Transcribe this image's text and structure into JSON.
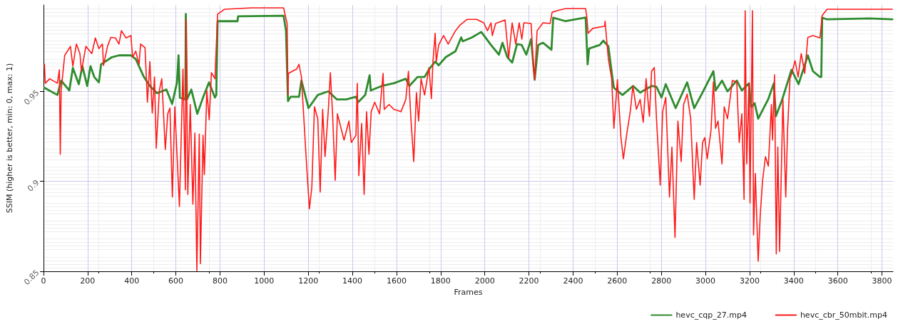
{
  "chart_data": {
    "type": "line",
    "xlabel": "Frames",
    "ylabel": "SSIM (higher is better, min: 0, max: 1)",
    "xlim": [
      0,
      3850
    ],
    "xticks": [
      0,
      200,
      400,
      600,
      800,
      1000,
      1200,
      1400,
      1600,
      1800,
      2000,
      2200,
      2400,
      2600,
      2800,
      3000,
      3200,
      3400,
      3600,
      3800
    ],
    "ylim": [
      0.85,
      0.998
    ],
    "yticks": [
      0.85,
      0.9,
      0.95
    ],
    "grid": true,
    "legend": "bottom right",
    "marker": "none",
    "line_style": "solid",
    "series": [
      {
        "name": "hevc_cqp_27.mp4",
        "color": "#2e8b2e",
        "x": [
          4,
          63,
          80,
          117,
          133,
          160,
          176,
          198,
          213,
          230,
          251,
          261,
          310,
          342,
          396,
          418,
          455,
          482,
          514,
          557,
          583,
          605,
          612,
          618,
          643,
          645,
          650,
          670,
          697,
          723,
          750,
          777,
          783,
          789,
          879,
          882,
          1088,
          1099,
          1108,
          1120,
          1158,
          1169,
          1201,
          1243,
          1291,
          1330,
          1372,
          1416,
          1426,
          1458,
          1478,
          1483,
          1533,
          1588,
          1642,
          1658,
          1695,
          1727,
          1749,
          1775,
          1791,
          1823,
          1867,
          1893,
          1900,
          1942,
          1984,
          2028,
          2064,
          2080,
          2102,
          2124,
          2146,
          2167,
          2188,
          2210,
          2226,
          2242,
          2264,
          2302,
          2310,
          2366,
          2457,
          2466,
          2473,
          2521,
          2537,
          2560,
          2579,
          2585,
          2624,
          2672,
          2704,
          2756,
          2778,
          2801,
          2820,
          2865,
          2917,
          2949,
          2981,
          3036,
          3046,
          3075,
          3100,
          3142,
          3165,
          3197,
          3207,
          3223,
          3239,
          3284,
          3310,
          3319,
          3348,
          3390,
          3422,
          3464,
          3487,
          3519,
          3525,
          3529,
          3551,
          3744,
          3847
        ],
        "values": [
          0.952,
          0.948,
          0.956,
          0.9505,
          0.963,
          0.954,
          0.964,
          0.953,
          0.964,
          0.958,
          0.955,
          0.965,
          0.969,
          0.97,
          0.97,
          0.968,
          0.958,
          0.953,
          0.949,
          0.951,
          0.943,
          0.955,
          0.97,
          0.9465,
          0.9455,
          0.993,
          0.9455,
          0.951,
          0.9375,
          0.9466,
          0.955,
          0.9466,
          0.948,
          0.989,
          0.989,
          0.9917,
          0.992,
          0.9837,
          0.9446,
          0.947,
          0.947,
          0.956,
          0.9407,
          0.948,
          0.95,
          0.9455,
          0.9455,
          0.947,
          0.944,
          0.948,
          0.959,
          0.9505,
          0.953,
          0.9545,
          0.957,
          0.953,
          0.958,
          0.958,
          0.9625,
          0.9665,
          0.9645,
          0.969,
          0.9723,
          0.98,
          0.9778,
          0.98,
          0.983,
          0.9758,
          0.9704,
          0.977,
          0.969,
          0.966,
          0.9763,
          0.9758,
          0.9704,
          0.979,
          0.9565,
          0.9758,
          0.977,
          0.9731,
          0.9909,
          0.989,
          0.991,
          0.965,
          0.9738,
          0.9758,
          0.9782,
          0.975,
          0.957,
          0.952,
          0.948,
          0.953,
          0.9493,
          0.953,
          0.9525,
          0.9466,
          0.954,
          0.9407,
          0.955,
          0.9407,
          0.948,
          0.9612,
          0.9505,
          0.956,
          0.95,
          0.956,
          0.9505,
          0.9545,
          0.9414,
          0.9434,
          0.9348,
          0.9455,
          0.9545,
          0.9362,
          0.9455,
          0.962,
          0.954,
          0.97,
          0.9612,
          0.958,
          0.958,
          0.991,
          0.99,
          0.9905,
          0.99
        ]
      },
      {
        "name": "hevc_cbr_50mbit.mp4",
        "color": "#ff1a1a",
        "x": [
          4,
          8,
          28,
          63,
          72,
          76,
          80,
          96,
          122,
          133,
          149,
          165,
          172,
          192,
          219,
          235,
          251,
          267,
          272,
          290,
          305,
          326,
          342,
          353,
          374,
          396,
          404,
          418,
          433,
          440,
          460,
          466,
          471,
          482,
          493,
          503,
          511,
          525,
          536,
          552,
          563,
          573,
          584,
          595,
          616,
          632,
          643,
          646,
          654,
          665,
          677,
          686,
          695,
          706,
          711,
          723,
          729,
          740,
          751,
          761,
          777,
          789,
          820,
          943,
          1088,
          1104,
          1108,
          1110,
          1147,
          1158,
          1169,
          1180,
          1190,
          1205,
          1216,
          1228,
          1243,
          1254,
          1265,
          1276,
          1291,
          1300,
          1310,
          1322,
          1332,
          1362,
          1384,
          1395,
          1416,
          1422,
          1429,
          1442,
          1453,
          1464,
          1475,
          1485,
          1501,
          1523,
          1539,
          1544,
          1566,
          1588,
          1620,
          1642,
          1654,
          1665,
          1678,
          1690,
          1700,
          1711,
          1727,
          1747,
          1758,
          1765,
          1775,
          1780,
          1791,
          1813,
          1834,
          1867,
          1888,
          1920,
          1963,
          1995,
          2012,
          2028,
          2034,
          2049,
          2092,
          2108,
          2124,
          2140,
          2156,
          2168,
          2177,
          2210,
          2220,
          2226,
          2237,
          2264,
          2296,
          2305,
          2328,
          2366,
          2457,
          2462,
          2468,
          2489,
          2543,
          2545,
          2560,
          2575,
          2585,
          2601,
          2617,
          2628,
          2644,
          2660,
          2671,
          2687,
          2704,
          2718,
          2731,
          2746,
          2756,
          2768,
          2778,
          2795,
          2806,
          2820,
          2837,
          2848,
          2862,
          2875,
          2890,
          2901,
          2917,
          2933,
          2949,
          2960,
          2976,
          2987,
          2997,
          3008,
          3025,
          3036,
          3046,
          3057,
          3075,
          3085,
          3100,
          3122,
          3142,
          3153,
          3165,
          3175,
          3180,
          3187,
          3197,
          3202,
          3213,
          3218,
          3226,
          3239,
          3248,
          3259,
          3272,
          3285,
          3299,
          3304,
          3313,
          3321,
          3328,
          3336,
          3351,
          3364,
          3372,
          3383,
          3392,
          3406,
          3420,
          3434,
          3450,
          3464,
          3487,
          3519,
          3529,
          3551,
          3847
        ],
        "values": [
          0.965,
          0.9545,
          0.957,
          0.9545,
          0.962,
          0.915,
          0.9505,
          0.97,
          0.975,
          0.964,
          0.9763,
          0.971,
          0.9612,
          0.975,
          0.971,
          0.9797,
          0.9738,
          0.9763,
          0.9644,
          0.975,
          0.98,
          0.9797,
          0.9763,
          0.9837,
          0.9797,
          0.981,
          0.969,
          0.9723,
          0.965,
          0.9763,
          0.9743,
          0.958,
          0.944,
          0.9665,
          0.938,
          0.958,
          0.9184,
          0.9505,
          0.957,
          0.9177,
          0.9375,
          0.9407,
          0.8913,
          0.9414,
          0.886,
          0.9624,
          0.8953,
          0.99,
          0.8927,
          0.9427,
          0.8873,
          0.9268,
          0.8503,
          0.9263,
          0.8543,
          0.9256,
          0.9038,
          0.9505,
          0.9342,
          0.9604,
          0.957,
          0.9929,
          0.9956,
          0.9964,
          0.9964,
          0.9877,
          0.948,
          0.96,
          0.9624,
          0.965,
          0.958,
          0.9348,
          0.9137,
          0.8847,
          0.8966,
          0.9414,
          0.9348,
          0.894,
          0.94,
          0.9137,
          0.94,
          0.9604,
          0.9375,
          0.9006,
          0.9375,
          0.9229,
          0.9335,
          0.9216,
          0.9256,
          0.9545,
          0.9031,
          0.9322,
          0.8927,
          0.9387,
          0.915,
          0.9387,
          0.944,
          0.9375,
          0.96,
          0.94,
          0.9427,
          0.94,
          0.9387,
          0.9455,
          0.9612,
          0.9348,
          0.911,
          0.9493,
          0.9335,
          0.957,
          0.948,
          0.9632,
          0.946,
          0.9665,
          0.9823,
          0.9665,
          0.9758,
          0.981,
          0.9763,
          0.9837,
          0.9869,
          0.99,
          0.99,
          0.9881,
          0.9837,
          0.9881,
          0.981,
          0.9877,
          0.9897,
          0.9685,
          0.9881,
          0.9763,
          0.9881,
          0.979,
          0.9881,
          0.9877,
          0.964,
          0.9565,
          0.9837,
          0.9881,
          0.9877,
          0.994,
          0.9948,
          0.996,
          0.996,
          0.9917,
          0.9823,
          0.985,
          0.9862,
          0.989,
          0.968,
          0.957,
          0.9295,
          0.9565,
          0.9243,
          0.9125,
          0.9268,
          0.9394,
          0.953,
          0.94,
          0.9455,
          0.9328,
          0.957,
          0.9362,
          0.9612,
          0.9632,
          0.9348,
          0.8979,
          0.9387,
          0.9466,
          0.8913,
          0.919,
          0.8688,
          0.9335,
          0.911,
          0.9427,
          0.9485,
          0.9348,
          0.89,
          0.9216,
          0.8979,
          0.9216,
          0.9243,
          0.9125,
          0.9282,
          0.9552,
          0.9295,
          0.9335,
          0.9097,
          0.9414,
          0.9348,
          0.956,
          0.9552,
          0.9216,
          0.9375,
          0.89,
          0.9948,
          0.9097,
          0.9545,
          0.888,
          0.9948,
          0.8702,
          0.9044,
          0.8556,
          0.8808,
          0.9006,
          0.9137,
          0.9085,
          0.9427,
          0.9229,
          0.9592,
          0.8596,
          0.919,
          0.861,
          0.9455,
          0.8913,
          0.9282,
          0.957,
          0.9604,
          0.967,
          0.958,
          0.971,
          0.96,
          0.98,
          0.981,
          0.9797,
          0.9922,
          0.9956,
          0.9956
        ]
      }
    ]
  }
}
